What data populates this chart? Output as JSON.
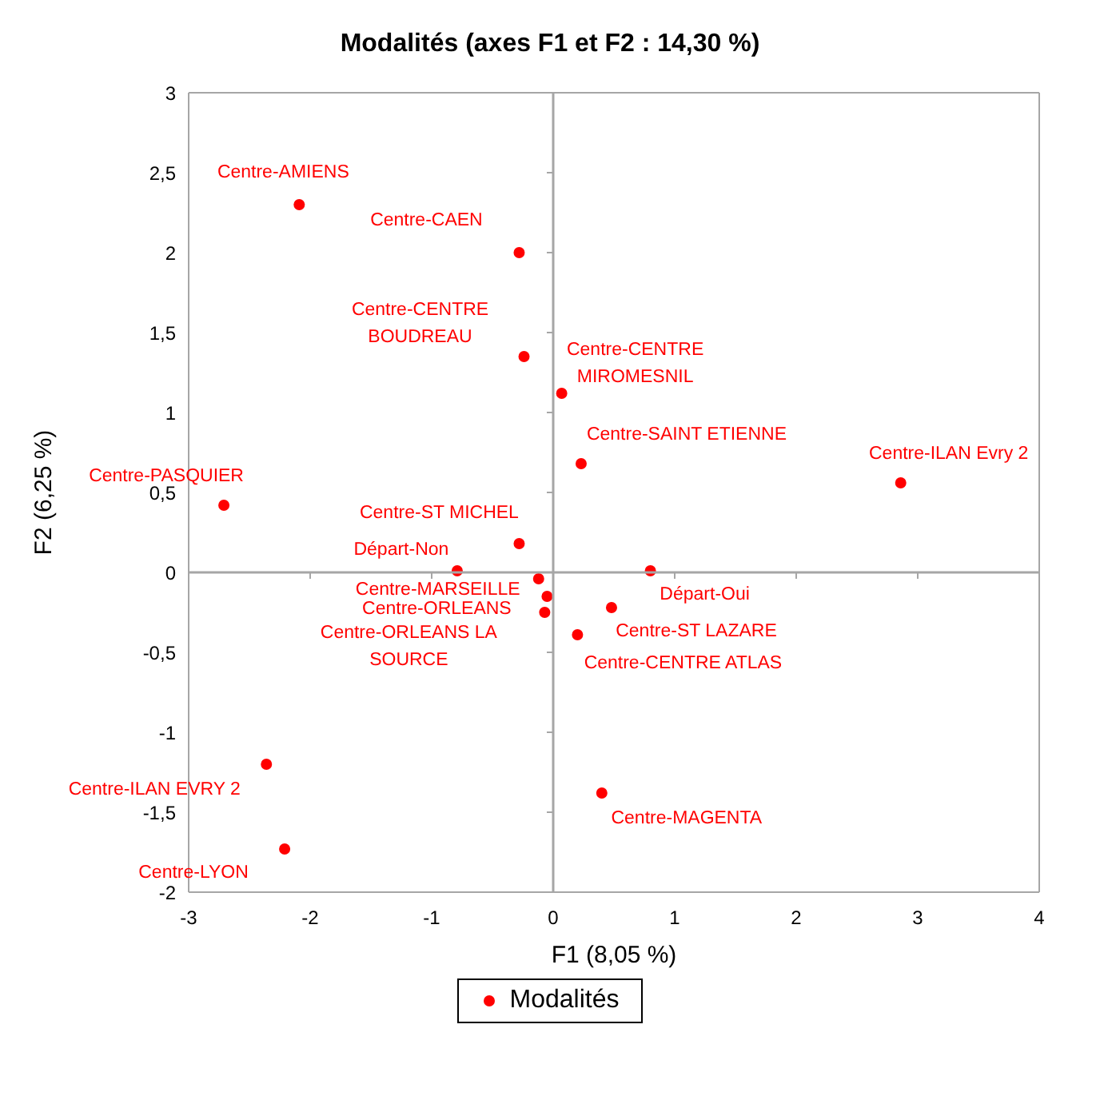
{
  "chart_data": {
    "type": "scatter",
    "title": "Modalités (axes F1 et F2 : 14,30 %)",
    "xlabel": "F1 (8,05 %)",
    "ylabel": "F2 (6,25 %)",
    "x": [
      -2.09,
      -0.28,
      -0.24,
      0.07,
      0.23,
      2.86,
      -2.71,
      -0.28,
      -0.79,
      0.8,
      -0.12,
      -0.05,
      -0.07,
      0.48,
      0.2,
      0.4,
      -2.36,
      -2.21
    ],
    "series": [
      {
        "name": "Modalités",
        "color": "#ff0000",
        "values": [
          2.3,
          2.0,
          1.35,
          1.12,
          0.68,
          0.56,
          0.42,
          0.18,
          0.01,
          0.01,
          -0.04,
          -0.15,
          -0.25,
          -0.22,
          -0.39,
          -1.38,
          -1.2,
          -1.73
        ]
      }
    ],
    "xlim": [
      -3,
      4
    ],
    "xticks": [
      -3,
      -2,
      -1,
      0,
      1,
      2,
      3,
      4
    ],
    "ylim": [
      -2,
      3
    ],
    "yticks": [
      {
        "value": -2,
        "label": "-2"
      },
      {
        "value": -1.5,
        "label": "-1,5"
      },
      {
        "value": -1,
        "label": "-1"
      },
      {
        "value": -0.5,
        "label": "-0,5"
      },
      {
        "value": 0,
        "label": "0"
      },
      {
        "value": 0.5,
        "label": "0,5"
      },
      {
        "value": 1,
        "label": "1"
      },
      {
        "value": 1.5,
        "label": "1,5"
      },
      {
        "value": 2,
        "label": "2"
      },
      {
        "value": 2.5,
        "label": "2,5"
      },
      {
        "value": 3,
        "label": "3"
      }
    ],
    "annotations": [
      {
        "text": "Centre-AMIENS",
        "x": -2.09,
        "y": 2.3
      },
      {
        "text": "Centre-CAEN",
        "x": -0.28,
        "y": 2.0
      },
      {
        "text": "Centre-CENTRE\nBOUDREAU",
        "x": -0.24,
        "y": 1.35
      },
      {
        "text": "Centre-CENTRE\nMIROMESNIL",
        "x": 0.07,
        "y": 1.12
      },
      {
        "text": "Centre-SAINT ETIENNE",
        "x": 0.23,
        "y": 0.68
      },
      {
        "text": "Centre-ILAN Evry 2",
        "x": 2.86,
        "y": 0.56
      },
      {
        "text": "Centre-PASQUIER",
        "x": -2.71,
        "y": 0.42
      },
      {
        "text": "Centre-ST MICHEL",
        "x": -0.28,
        "y": 0.18
      },
      {
        "text": "Départ-Non",
        "x": -0.79,
        "y": 0.01
      },
      {
        "text": "Départ-Oui",
        "x": 0.8,
        "y": 0.01
      },
      {
        "text": "Centre-MARSEILLE",
        "x": -0.12,
        "y": -0.04
      },
      {
        "text": "Centre-ORLEANS",
        "x": -0.05,
        "y": -0.15
      },
      {
        "text": "Centre-ORLEANS LA\nSOURCE",
        "x": -0.07,
        "y": -0.25
      },
      {
        "text": "Centre-ST LAZARE",
        "x": 0.48,
        "y": -0.22
      },
      {
        "text": "Centre-CENTRE ATLAS",
        "x": 0.2,
        "y": -0.39
      },
      {
        "text": "Centre-MAGENTA",
        "x": 0.4,
        "y": -1.38
      },
      {
        "text": "Centre-ILAN EVRY 2",
        "x": -2.36,
        "y": -1.2
      },
      {
        "text": "Centre-LYON",
        "x": -2.21,
        "y": -1.73
      }
    ],
    "marker": "circle",
    "legend": "bottom"
  }
}
